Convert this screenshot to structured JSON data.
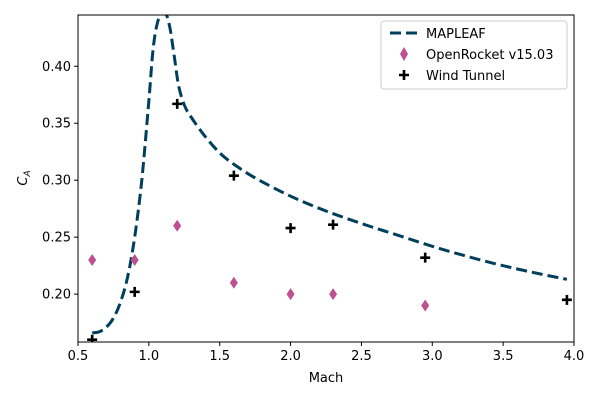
{
  "chart_data": {
    "type": "line",
    "xlabel": "Mach",
    "ylabel_main": "C",
    "ylabel_sub": "A",
    "xlim": [
      0.5,
      4.0
    ],
    "ylim": [
      0.158,
      0.445
    ],
    "xticks": [
      0.5,
      1.0,
      1.5,
      2.0,
      2.5,
      3.0,
      3.5,
      4.0
    ],
    "xtick_labels": [
      "0.5",
      "1.0",
      "1.5",
      "2.0",
      "2.5",
      "3.0",
      "3.5",
      "4.0"
    ],
    "yticks": [
      0.2,
      0.25,
      0.3,
      0.35,
      0.4
    ],
    "ytick_labels": [
      "0.20",
      "0.25",
      "0.30",
      "0.35",
      "0.40"
    ],
    "grid": false,
    "legend_position": "top-right",
    "series": [
      {
        "name": "MAPLEAF",
        "kind": "line",
        "style": "dashed",
        "color": "#003f5c",
        "x": [
          0.6,
          0.65,
          0.7,
          0.75,
          0.8,
          0.85,
          0.9,
          0.95,
          1.0,
          1.03,
          1.06,
          1.09,
          1.12,
          1.15,
          1.18,
          1.21,
          1.25,
          1.3,
          1.4,
          1.5,
          1.6,
          1.75,
          2.0,
          2.25,
          2.5,
          2.75,
          3.0,
          3.25,
          3.5,
          3.75,
          3.95
        ],
        "y": [
          0.166,
          0.167,
          0.171,
          0.179,
          0.193,
          0.215,
          0.25,
          0.3,
          0.37,
          0.415,
          0.438,
          0.446,
          0.446,
          0.433,
          0.408,
          0.383,
          0.366,
          0.355,
          0.338,
          0.324,
          0.314,
          0.302,
          0.286,
          0.273,
          0.262,
          0.252,
          0.242,
          0.233,
          0.225,
          0.218,
          0.213
        ]
      },
      {
        "name": "OpenRocket v15.03",
        "kind": "scatter",
        "marker": "thin-diamond",
        "color": "#bc5090",
        "x": [
          0.6,
          0.9,
          1.2,
          1.6,
          2.0,
          2.3,
          2.95
        ],
        "y": [
          0.23,
          0.23,
          0.26,
          0.21,
          0.2,
          0.2,
          0.19
        ]
      },
      {
        "name": "Wind Tunnel",
        "kind": "scatter",
        "marker": "plus",
        "color": "#000000",
        "x": [
          0.6,
          0.9,
          1.2,
          1.6,
          2.0,
          2.3,
          2.95,
          3.95
        ],
        "y": [
          0.16,
          0.202,
          0.367,
          0.304,
          0.258,
          0.261,
          0.232,
          0.195
        ]
      }
    ]
  }
}
